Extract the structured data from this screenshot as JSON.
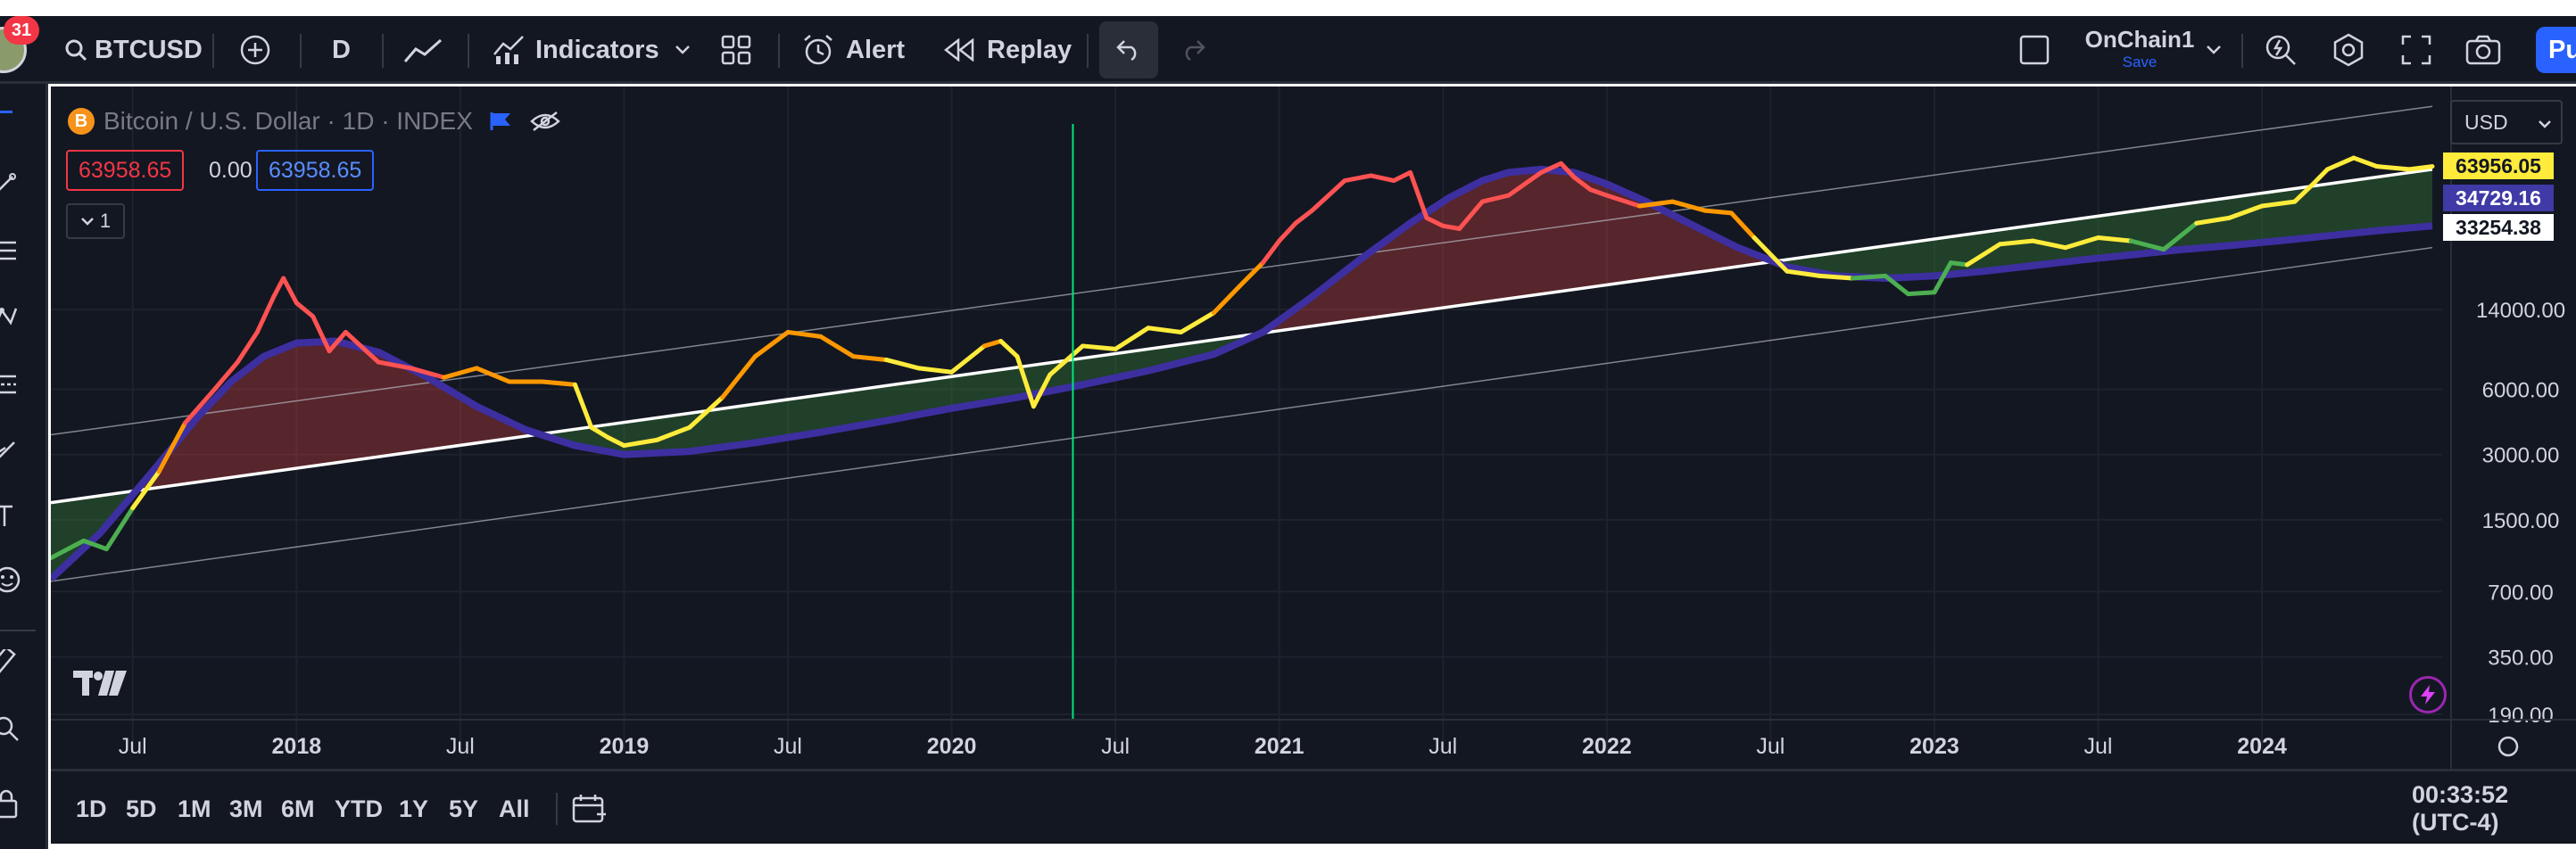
{
  "notifications": "31",
  "toolbar": {
    "symbol": "BTCUSD",
    "interval": "D",
    "indicators": "Indicators",
    "alert": "Alert",
    "replay": "Replay",
    "layout_name": "OnChain1",
    "layout_save": "Save",
    "publish": "Pu"
  },
  "legend": {
    "title": "Bitcoin / U.S. Dollar · 1D · INDEX",
    "btc_letter": "B",
    "ohlc": [
      "63958.65",
      "0.00",
      "63958.65"
    ],
    "indicator_count": "1"
  },
  "currency": "USD",
  "price_labels": [
    {
      "value": "63956.05",
      "bg": "#ffeb3b",
      "fg": "#131722"
    },
    {
      "value": "34729.16",
      "bg": "#3f3aa6",
      "fg": "#ffffff"
    },
    {
      "value": "33254.38",
      "bg": "#ffffff",
      "fg": "#131722"
    }
  ],
  "chart_data": {
    "type": "line",
    "scale": "log",
    "y_ticks": [
      14000,
      6000,
      3000,
      1500,
      700,
      350,
      190
    ],
    "y_tick_labels": [
      "14000.00",
      "6000.00",
      "3000.00",
      "1500.00",
      "700.00",
      "350.00",
      "190.00"
    ],
    "x_labels": [
      "Jul",
      "2018",
      "Jul",
      "2019",
      "Jul",
      "2020",
      "Jul",
      "2021",
      "Jul",
      "2022",
      "Jul",
      "2023",
      "Jul",
      "2024"
    ],
    "x_dates": [
      2017.5,
      2018.0,
      2018.5,
      2019.0,
      2019.5,
      2020.0,
      2020.5,
      2021.0,
      2021.5,
      2022.0,
      2022.5,
      2023.0,
      2023.5,
      2024.0
    ],
    "x_range": [
      2017.25,
      2024.55
    ],
    "y_range": [
      180,
      95000
    ],
    "vertical_marker": 2020.37,
    "series": [
      {
        "role": "price",
        "x": [
          2017.25,
          2017.35,
          2017.42,
          2017.5,
          2017.58,
          2017.66,
          2017.75,
          2017.82,
          2017.88,
          2017.93,
          2017.96,
          2018.0,
          2018.05,
          2018.1,
          2018.15,
          2018.25,
          2018.35,
          2018.45,
          2018.55,
          2018.65,
          2018.75,
          2018.85,
          2018.9,
          2018.95,
          2019.0,
          2019.1,
          2019.2,
          2019.3,
          2019.4,
          2019.5,
          2019.6,
          2019.7,
          2019.8,
          2019.9,
          2020.0,
          2020.1,
          2020.15,
          2020.2,
          2020.25,
          2020.3,
          2020.4,
          2020.5,
          2020.6,
          2020.7,
          2020.8,
          2020.88,
          2020.95,
          2021.0,
          2021.05,
          2021.1,
          2021.2,
          2021.28,
          2021.35,
          2021.4,
          2021.45,
          2021.5,
          2021.55,
          2021.62,
          2021.7,
          2021.8,
          2021.86,
          2021.9,
          2021.95,
          2022.0,
          2022.1,
          2022.2,
          2022.3,
          2022.38,
          2022.45,
          2022.55,
          2022.65,
          2022.75,
          2022.85,
          2022.92,
          2023.0,
          2023.05,
          2023.1,
          2023.2,
          2023.3,
          2023.4,
          2023.5,
          2023.6,
          2023.7,
          2023.8,
          2023.9,
          2024.0,
          2024.1,
          2024.15,
          2024.2,
          2024.28,
          2024.35,
          2024.45,
          2024.52
        ],
        "y": [
          1000,
          1200,
          1100,
          1700,
          2500,
          4200,
          6000,
          8000,
          11000,
          16000,
          19500,
          15000,
          13000,
          9000,
          11000,
          8000,
          7500,
          6800,
          7500,
          6500,
          6500,
          6300,
          4000,
          3600,
          3300,
          3500,
          4000,
          5500,
          8500,
          11000,
          10500,
          8500,
          8200,
          7500,
          7200,
          9500,
          10000,
          8500,
          5000,
          7000,
          9500,
          9200,
          11500,
          11000,
          13500,
          18000,
          23000,
          29000,
          35000,
          40000,
          55000,
          58000,
          55000,
          60000,
          37000,
          34000,
          33000,
          44000,
          47000,
          60000,
          66000,
          57000,
          50000,
          47000,
          42000,
          44000,
          40000,
          39000,
          30000,
          21000,
          20000,
          19500,
          20000,
          16500,
          16800,
          23000,
          22500,
          28000,
          29000,
          27000,
          30000,
          29000,
          26500,
          35000,
          37000,
          42000,
          44000,
          52000,
          62000,
          70000,
          64000,
          62000,
          63958
        ]
      },
      {
        "role": "mean_line",
        "x": [
          2017.25,
          2024.52
        ],
        "y": [
          1800,
          62000
        ]
      },
      {
        "role": "upper_band",
        "x": [
          2017.25,
          2024.52
        ],
        "y": [
          3700,
          121000
        ]
      },
      {
        "role": "lower_band",
        "x": [
          2017.25,
          2024.52
        ],
        "y": [
          780,
          27000
        ]
      },
      {
        "role": "curve",
        "x": [
          2017.25,
          2017.4,
          2017.55,
          2017.7,
          2017.8,
          2017.9,
          2018.0,
          2018.12,
          2018.25,
          2018.4,
          2018.55,
          2018.7,
          2018.85,
          2019.0,
          2019.2,
          2019.4,
          2019.6,
          2019.8,
          2020.0,
          2020.2,
          2020.4,
          2020.6,
          2020.8,
          2020.95,
          2021.1,
          2021.25,
          2021.4,
          2021.52,
          2021.62,
          2021.7,
          2021.8,
          2021.9,
          2022.0,
          2022.12,
          2022.25,
          2022.4,
          2022.55,
          2022.7,
          2022.85,
          2023.0,
          2023.15,
          2023.3,
          2023.45,
          2023.6,
          2023.75,
          2023.9,
          2024.05,
          2024.2,
          2024.35,
          2024.52
        ],
        "y": [
          800,
          1300,
          2400,
          4500,
          6500,
          8500,
          9800,
          10000,
          8900,
          6800,
          5000,
          3900,
          3300,
          3000,
          3100,
          3400,
          3800,
          4300,
          4900,
          5500,
          6300,
          7300,
          8700,
          11000,
          16000,
          24000,
          35000,
          46000,
          55000,
          60000,
          62000,
          60000,
          53000,
          44000,
          35000,
          27000,
          22000,
          20000,
          19500,
          20000,
          21000,
          22300,
          23700,
          25000,
          26400,
          27600,
          29000,
          30600,
          32300,
          34000
        ]
      }
    ]
  },
  "bottom": {
    "ranges": [
      "1D",
      "5D",
      "1M",
      "3M",
      "6M",
      "YTD",
      "1Y",
      "5Y",
      "All"
    ],
    "clock": "00:33:52 (UTC-4)"
  }
}
